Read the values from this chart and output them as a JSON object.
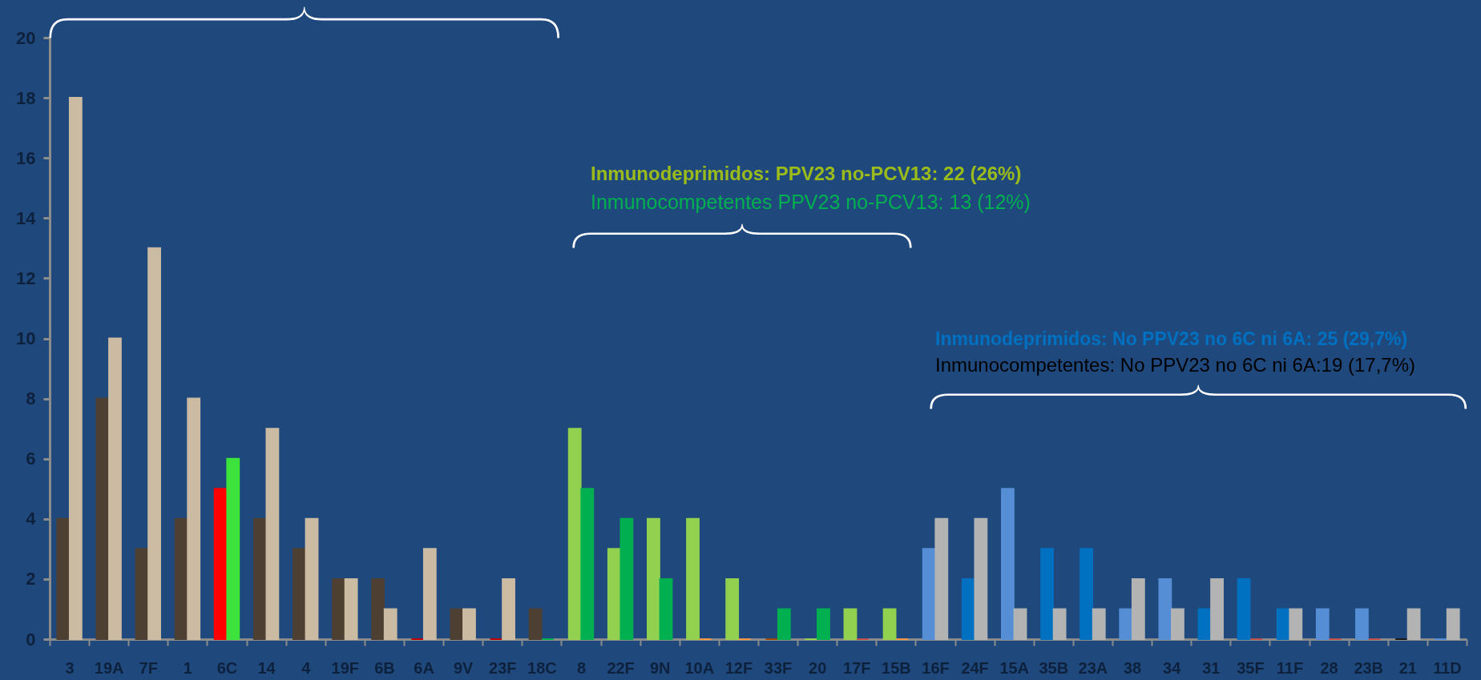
{
  "chart_data": {
    "type": "bar",
    "categories": [
      "3",
      "19A",
      "7F",
      "1",
      "6C",
      "14",
      "4",
      "19F",
      "6B",
      "6A",
      "9V",
      "23F",
      "18C",
      "8",
      "22F",
      "9N",
      "10A",
      "12F",
      "33F",
      "20",
      "17F",
      "15B",
      "16F",
      "24F",
      "15A",
      "35B",
      "23A",
      "38",
      "34",
      "31",
      "35F",
      "11F",
      "28",
      "23B",
      "21",
      "11D"
    ],
    "series": [
      {
        "values": [
          4,
          8,
          3,
          4,
          5,
          4,
          3,
          2,
          2,
          0,
          1,
          0,
          1,
          7,
          3,
          4,
          4,
          2,
          0,
          0,
          1,
          1,
          3,
          2,
          5,
          3,
          3,
          1,
          2,
          1,
          2,
          1,
          1,
          1,
          0,
          0
        ],
        "colors": [
          "#4d4033",
          "#4d4033",
          "#4d4033",
          "#4d4033",
          "#ff0000",
          "#4d4033",
          "#4d4033",
          "#4d4033",
          "#4d4033",
          "#c00000",
          "#4d4033",
          "#c00000",
          "#4d4033",
          "#92d050",
          "#92d050",
          "#92d050",
          "#92d050",
          "#92d050",
          "#984807",
          "#92d050",
          "#92d050",
          "#92d050",
          "#558ed5",
          "#0070c0",
          "#558ed5",
          "#0070c0",
          "#0070c0",
          "#558ed5",
          "#558ed5",
          "#0070c0",
          "#0070c0",
          "#0070c0",
          "#558ed5",
          "#558ed5",
          "#1a1a1a",
          "#558ed5"
        ]
      },
      {
        "values": [
          18,
          10,
          13,
          8,
          6,
          7,
          4,
          2,
          1,
          3,
          1,
          2,
          0,
          5,
          4,
          2,
          0,
          0,
          1,
          1,
          0,
          0,
          4,
          4,
          1,
          1,
          1,
          2,
          1,
          2,
          0,
          1,
          0,
          0,
          1,
          1
        ],
        "colors": [
          "#cbbba3",
          "#cbbba3",
          "#cbbba3",
          "#cbbba3",
          "#3ce33c",
          "#cbbba3",
          "#cbbba3",
          "#cbbba3",
          "#cbbba3",
          "#cbbba3",
          "#cbbba3",
          "#cbbba3",
          "#00b050",
          "#00b050",
          "#00b050",
          "#00b050",
          "#f79646",
          "#f79646",
          "#00b050",
          "#00b050",
          "#c0504d",
          "#f79646",
          "#b3b3b3",
          "#b3b3b3",
          "#b3b3b3",
          "#b3b3b3",
          "#b3b3b3",
          "#b3b3b3",
          "#b3b3b3",
          "#b3b3b3",
          "#c0504d",
          "#b3b3b3",
          "#c0504d",
          "#c0504d",
          "#b3b3b3",
          "#b3b3b3"
        ]
      }
    ],
    "ylim": [
      0,
      20
    ],
    "yticks": [
      0,
      2,
      4,
      6,
      8,
      10,
      12,
      14,
      16,
      18,
      20
    ],
    "annotations": [
      "Inmunodeprimidos: PPV23 no-PCV13: 22 (26%)",
      "Inmunocompetentes PPV23 no-PCV13: 13 (12%)",
      "Inmunodeprimidos: No PPV23 no 6C ni 6A: 25 (29,7%)",
      "Inmunocompetentes: No PPV23 no 6C ni 6A:19 (17,7%)"
    ]
  }
}
